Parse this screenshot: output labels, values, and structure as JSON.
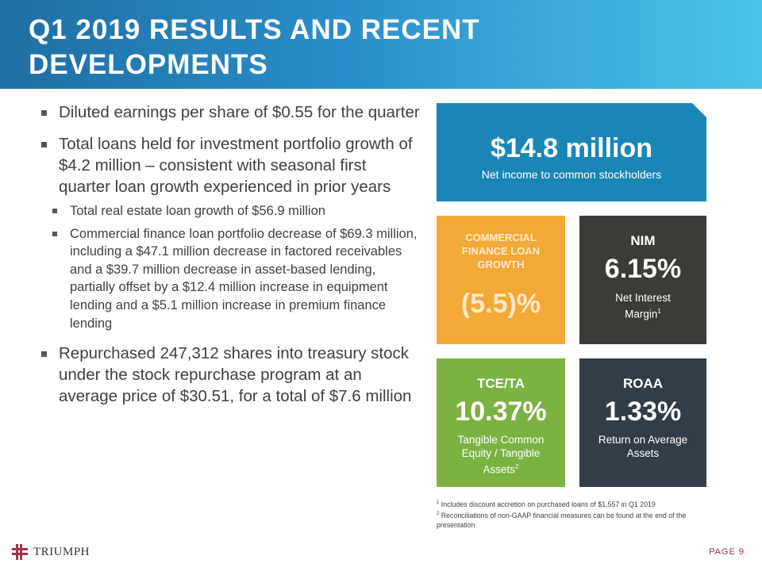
{
  "header": {
    "title": "Q1 2019 RESULTS AND RECENT DEVELOPMENTS"
  },
  "bullets": [
    {
      "text": "Diluted earnings per share of $0.55 for the quarter"
    },
    {
      "text": "Total loans held for investment portfolio growth of $4.2 million – consistent with seasonal first quarter loan growth experienced in prior years"
    },
    {
      "text": "Repurchased 247,312 shares into treasury stock under the stock repurchase program at an average price of $30.51, for a total of $7.6 million"
    }
  ],
  "sub_bullets": [
    {
      "text": "Total real estate loan growth of $56.9 million"
    },
    {
      "text": "Commercial finance loan portfolio decrease of $69.3 million, including a $47.1 million decrease in factored receivables and a $39.7 million decrease in asset-based lending, partially offset by a $12.4 million increase in equipment lending and a $5.1 million increase in premium finance lending"
    }
  ],
  "tiles": {
    "net_income": {
      "value": "$14.8 million",
      "desc": "Net income to common stockholders",
      "color": "#1a86b6"
    },
    "cf_growth": {
      "label": "COMMERCIAL FINANCE LOAN GROWTH",
      "value": "(5.5)%",
      "color": "#f3a936"
    },
    "nim": {
      "label": "NIM",
      "value": "6.15%",
      "desc": "Net Interest Margin",
      "sup": "1",
      "color": "#3d3b38"
    },
    "tce": {
      "label": "TCE/TA",
      "value": "10.37%",
      "desc": "Tangible Common Equity / Tangible Assets",
      "sup": "2",
      "color": "#7bb242"
    },
    "roaa": {
      "label": "ROAA",
      "value": "1.33%",
      "desc": "Return on Average Assets",
      "color": "#333d48"
    }
  },
  "footnotes": [
    {
      "sup": "1",
      "text": "Includes discount accretion on purchased loans of $1,557 in Q1 2019"
    },
    {
      "sup": "2",
      "text": "Reconciliations of non-GAAP financial measures can be found at the end of the presentation"
    }
  ],
  "logo": {
    "text": "TRIUMPH"
  },
  "page": {
    "label": "PAGE 9"
  }
}
